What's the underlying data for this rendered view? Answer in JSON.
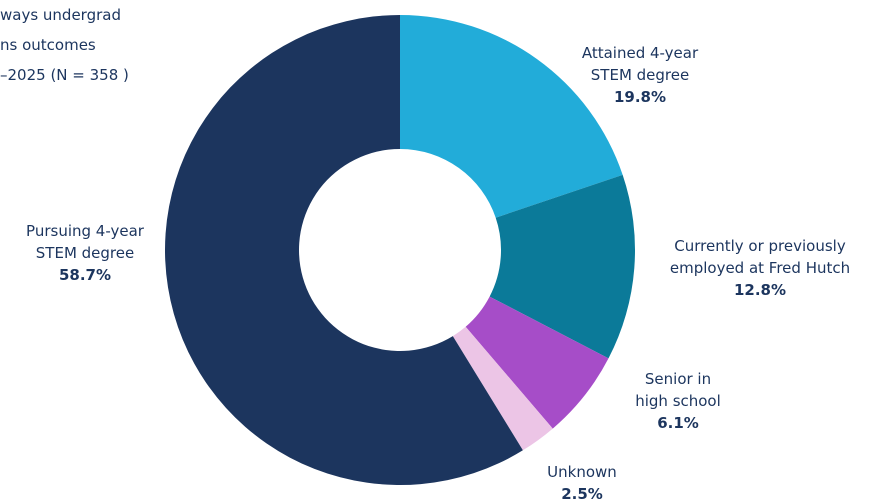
{
  "chart_data": {
    "type": "donut",
    "title": [
      "ways undergrad",
      "ns outcomes",
      "–2025 (N = 358 )"
    ],
    "categories": [
      "Attained 4-year\nSTEM degree",
      "Currently or previously\nemployed at Fred Hutch",
      "Senior in\nhigh school",
      "Unknown",
      "Pursuing 4-year\nSTEM degree"
    ],
    "values": [
      19.8,
      12.8,
      6.1,
      2.5,
      58.7
    ],
    "value_labels": [
      "19.8%",
      "12.8%",
      "6.1%",
      "2.5%",
      "58.7%"
    ],
    "colors": [
      "#22acd9",
      "#0b7a99",
      "#a64dc8",
      "#ecc5e6",
      "#1c355e"
    ]
  }
}
